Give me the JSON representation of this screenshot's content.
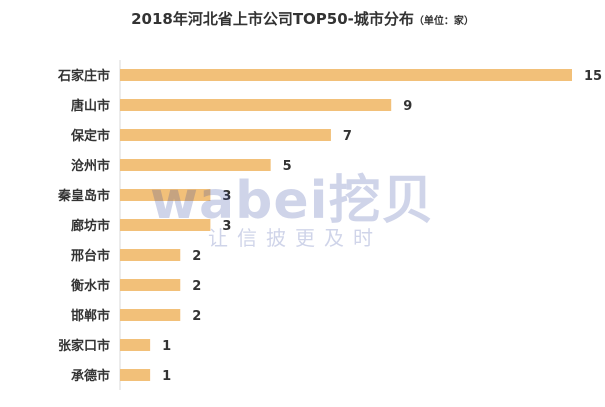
{
  "header": {
    "title": "2018年河北省上市公司TOP50-城市分布",
    "subtitle": "（单位：家）"
  },
  "watermark": {
    "brand": "wabei挖贝",
    "slogan": "让信披更及时"
  },
  "colors": {
    "bar": "#f2c079",
    "text": "#333333",
    "axis": "#d9d9d9",
    "watermark": "#2b3f9e"
  },
  "chart_data": {
    "type": "bar",
    "orientation": "horizontal",
    "categories": [
      "石家庄市",
      "唐山市",
      "保定市",
      "沧州市",
      "秦皇岛市",
      "廊坊市",
      "邢台市",
      "衡水市",
      "邯郸市",
      "张家口市",
      "承德市"
    ],
    "values": [
      15,
      9,
      7,
      5,
      3,
      3,
      2,
      2,
      2,
      1,
      1
    ],
    "title": "2018年河北省上市公司TOP50-城市分布",
    "subtitle": "（单位：家）",
    "xlim": [
      0,
      15
    ],
    "grid": false,
    "legend": "none",
    "data_labels": true
  }
}
